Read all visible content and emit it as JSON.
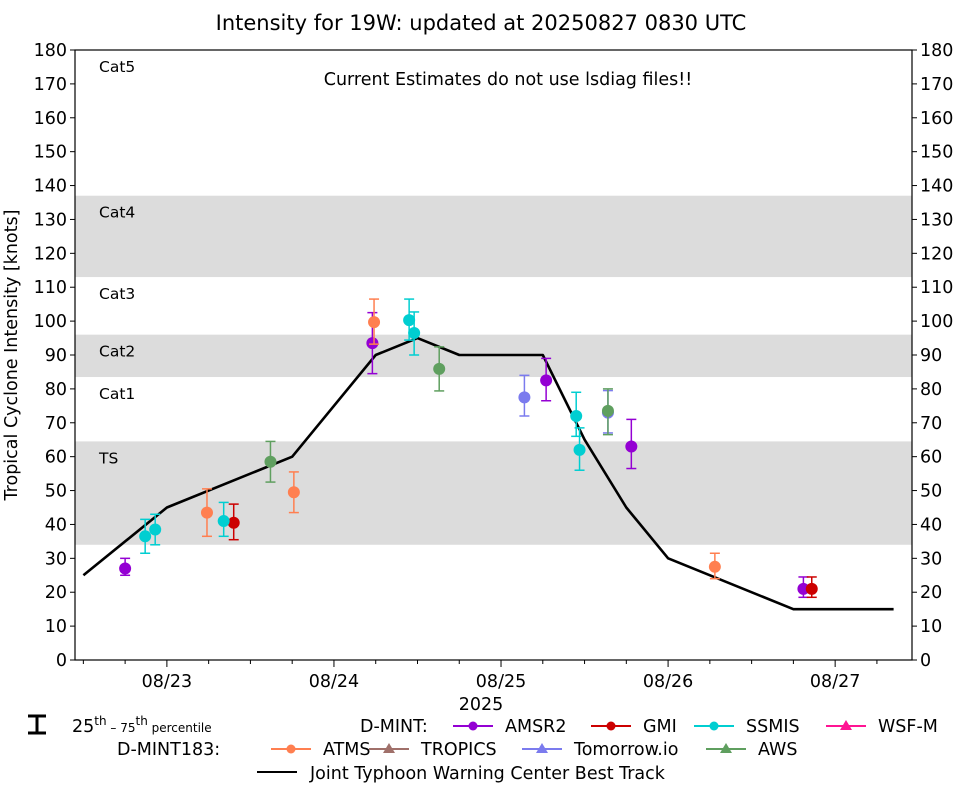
{
  "chart_data": {
    "type": "scatter",
    "title": "Intensity for 19W: updated at 20250827 0830 UTC",
    "annotation": "Current Estimates do not use lsdiag files!!",
    "xlabel": "2025",
    "ylabel": "Tropical Cyclone Intensity [knots]",
    "ylim": [
      0,
      180
    ],
    "yticks": [
      0,
      10,
      20,
      30,
      40,
      50,
      60,
      70,
      80,
      90,
      100,
      110,
      120,
      130,
      140,
      150,
      160,
      170,
      180
    ],
    "x_unit": "days since 2025-08-23 00Z",
    "xlim": [
      -0.55,
      4.46
    ],
    "xticks": [
      {
        "value": 0,
        "label": "08/23"
      },
      {
        "value": 1,
        "label": "08/24"
      },
      {
        "value": 2,
        "label": "08/25"
      },
      {
        "value": 3,
        "label": "08/26"
      },
      {
        "value": 4,
        "label": "08/27"
      }
    ],
    "minor_tick_step_days": 0.25,
    "bands": [
      {
        "label": "Cat5",
        "range": [
          137,
          180
        ],
        "shaded": false
      },
      {
        "label": "Cat4",
        "range": [
          113,
          137
        ],
        "shaded": true
      },
      {
        "label": "Cat3",
        "range": [
          96,
          113
        ],
        "shaded": false
      },
      {
        "label": "Cat2",
        "range": [
          83.5,
          96
        ],
        "shaded": true
      },
      {
        "label": "Cat1",
        "range": [
          64.5,
          83.5
        ],
        "shaded": false
      },
      {
        "label": "TS",
        "range": [
          34,
          64.5
        ],
        "shaded": true
      }
    ],
    "band_color": "#dcdcdc",
    "best_track": {
      "name": "Joint Typhoon Warning Center Best Track",
      "color": "#000000",
      "x": [
        -0.5,
        0,
        0.75,
        1.25,
        1.5,
        1.75,
        2.25,
        2.5,
        2.75,
        3.0,
        3.75,
        4.35
      ],
      "y": [
        25,
        45,
        60,
        90,
        95,
        90,
        90,
        65,
        45,
        30,
        15,
        15
      ]
    },
    "series": [
      {
        "name": "AMSR2",
        "group": "D-MINT",
        "marker": "circle",
        "color": "#9400d3",
        "points": [
          {
            "x": -0.25,
            "y": 27,
            "q25": 25,
            "q75": 30
          },
          {
            "x": 1.23,
            "y": 93.5,
            "q25": 84.5,
            "q75": 102.5
          },
          {
            "x": 2.27,
            "y": 82.5,
            "q25": 76.5,
            "q75": 89
          },
          {
            "x": 2.78,
            "y": 63,
            "q25": 56.5,
            "q75": 71
          },
          {
            "x": 3.81,
            "y": 21,
            "q25": 18.5,
            "q75": 24.5
          }
        ]
      },
      {
        "name": "GMI",
        "group": "D-MINT",
        "marker": "circle",
        "color": "#cc0000",
        "points": [
          {
            "x": 0.4,
            "y": 40.5,
            "q25": 35.5,
            "q75": 46
          },
          {
            "x": 3.86,
            "y": 21,
            "q25": 18.5,
            "q75": 24.5
          }
        ]
      },
      {
        "name": "SSMIS",
        "group": "D-MINT",
        "marker": "circle",
        "color": "#00ced1",
        "points": [
          {
            "x": -0.13,
            "y": 36.5,
            "q25": 31.5,
            "q75": 41.5
          },
          {
            "x": -0.07,
            "y": 38.5,
            "q25": 34,
            "q75": 43
          },
          {
            "x": 0.34,
            "y": 41,
            "q25": 36.5,
            "q75": 46.5
          },
          {
            "x": 1.45,
            "y": 100.3,
            "q25": 94.4,
            "q75": 106.5
          },
          {
            "x": 1.48,
            "y": 96.5,
            "q25": 90,
            "q75": 102.7
          },
          {
            "x": 2.45,
            "y": 72,
            "q25": 66,
            "q75": 79
          },
          {
            "x": 2.47,
            "y": 62,
            "q25": 56,
            "q75": 68.5
          }
        ]
      },
      {
        "name": "WSF-M",
        "group": "D-MINT",
        "marker": "triangle",
        "color": "#ff1493",
        "points": []
      },
      {
        "name": "ATMS",
        "group": "D-MINT183",
        "marker": "circle",
        "color": "#ff7f50",
        "points": [
          {
            "x": 0.24,
            "y": 43.5,
            "q25": 36.5,
            "q75": 50.5
          },
          {
            "x": 0.76,
            "y": 49.5,
            "q25": 43.5,
            "q75": 55.5
          },
          {
            "x": 1.24,
            "y": 99.7,
            "q25": 93.2,
            "q75": 106.5
          },
          {
            "x": 3.28,
            "y": 27.5,
            "q25": 24,
            "q75": 31.5
          }
        ]
      },
      {
        "name": "TROPICS",
        "group": "D-MINT183",
        "marker": "triangle",
        "color": "#a0706a",
        "points": []
      },
      {
        "name": "Tomorrow.io",
        "group": "D-MINT183",
        "marker": "triangle",
        "color": "#7b7bee",
        "points": [
          {
            "x": 2.14,
            "y": 77.5,
            "q25": 72,
            "q75": 84
          },
          {
            "x": 2.64,
            "y": 73,
            "q25": 67,
            "q75": 79.5
          }
        ]
      },
      {
        "name": "AWS",
        "group": "D-MINT183",
        "marker": "triangle",
        "color": "#5f9f5f",
        "points": [
          {
            "x": 0.62,
            "y": 58.5,
            "q25": 52.5,
            "q75": 64.5
          },
          {
            "x": 1.63,
            "y": 85.9,
            "q25": 79.4,
            "q75": 92.4
          },
          {
            "x": 2.64,
            "y": 73.5,
            "q25": 66.5,
            "q75": 80
          }
        ]
      }
    ],
    "legend": {
      "placement": "bottom",
      "percentile_label_pre": "25",
      "percentile_sup1": "th",
      "percentile_mid": " – 75",
      "percentile_sup2": "th",
      "percentile_post": " percentile",
      "group1_label": "D-MINT:",
      "group2_label": "D-MINT183:",
      "best_track_label": "Joint Typhoon Warning Center Best Track"
    }
  }
}
